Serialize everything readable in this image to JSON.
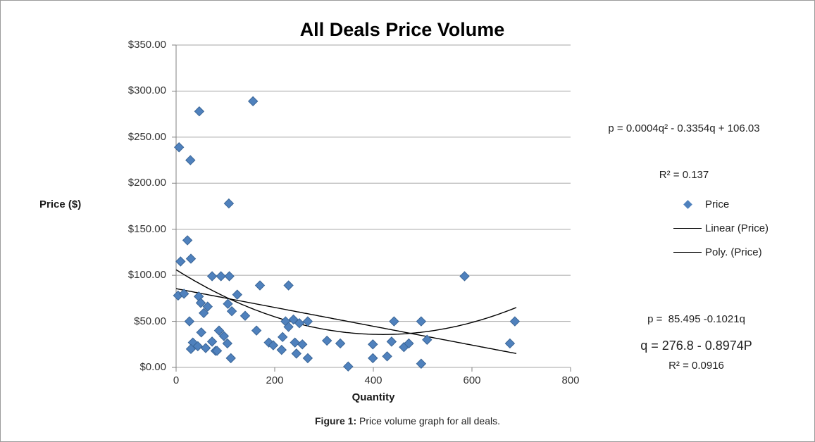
{
  "figure": {
    "caption_prefix": "Figure 1:",
    "caption_text": " Price volume graph for all deals."
  },
  "chart_data": {
    "type": "scatter",
    "title": "All Deals Price Volume",
    "xlabel": "Quantity",
    "ylabel": "Price ($)",
    "xlim": [
      0,
      800
    ],
    "ylim": [
      0,
      350
    ],
    "grid": "horizontal-only",
    "legend_position": "right-outside",
    "colors": {
      "point": "#4F81BD",
      "point_border": "#3A6596",
      "trend": "#000000",
      "grid": "#A6A6A6",
      "axis": "#808080"
    },
    "x_ticks": [
      {
        "value": 0,
        "label": "0"
      },
      {
        "value": 200,
        "label": "200"
      },
      {
        "value": 400,
        "label": "400"
      },
      {
        "value": 600,
        "label": "600"
      },
      {
        "value": 800,
        "label": "800"
      }
    ],
    "y_ticks": [
      {
        "value": 0,
        "label": "$0.00"
      },
      {
        "value": 50,
        "label": "$50.00"
      },
      {
        "value": 100,
        "label": "$100.00"
      },
      {
        "value": 150,
        "label": "$150.00"
      },
      {
        "value": 200,
        "label": "$200.00"
      },
      {
        "value": 250,
        "label": "$250.00"
      },
      {
        "value": 300,
        "label": "$300.00"
      },
      {
        "value": 350,
        "label": "$350.00"
      }
    ],
    "series": [
      {
        "name": "Price",
        "marker": "diamond",
        "color": "#4F81BD",
        "points": [
          [
            6,
            239
          ],
          [
            47,
            278
          ],
          [
            29,
            225
          ],
          [
            156,
            289
          ],
          [
            107,
            178
          ],
          [
            23,
            138
          ],
          [
            9,
            115
          ],
          [
            30,
            118
          ],
          [
            73,
            99
          ],
          [
            91,
            99
          ],
          [
            108,
            99
          ],
          [
            170,
            89
          ],
          [
            228,
            89
          ],
          [
            585,
            99
          ],
          [
            4,
            78
          ],
          [
            16,
            80
          ],
          [
            46,
            77
          ],
          [
            124,
            79
          ],
          [
            50,
            70
          ],
          [
            64,
            66
          ],
          [
            56,
            59
          ],
          [
            105,
            69
          ],
          [
            113,
            61
          ],
          [
            140,
            56
          ],
          [
            27,
            50
          ],
          [
            222,
            50
          ],
          [
            238,
            52
          ],
          [
            250,
            48
          ],
          [
            267,
            50
          ],
          [
            228,
            44
          ],
          [
            442,
            50
          ],
          [
            497,
            50
          ],
          [
            687,
            50
          ],
          [
            51,
            38
          ],
          [
            87,
            40
          ],
          [
            97,
            34
          ],
          [
            163,
            40
          ],
          [
            216,
            33
          ],
          [
            34,
            27
          ],
          [
            30,
            20
          ],
          [
            44,
            23
          ],
          [
            60,
            21
          ],
          [
            73,
            28
          ],
          [
            104,
            26
          ],
          [
            80,
            18
          ],
          [
            188,
            27
          ],
          [
            197,
            24
          ],
          [
            241,
            27
          ],
          [
            256,
            25
          ],
          [
            306,
            29
          ],
          [
            333,
            26
          ],
          [
            399,
            25
          ],
          [
            437,
            28
          ],
          [
            462,
            22
          ],
          [
            472,
            26
          ],
          [
            509,
            30
          ],
          [
            677,
            26
          ],
          [
            83,
            18
          ],
          [
            111,
            10
          ],
          [
            214,
            19
          ],
          [
            244,
            15
          ],
          [
            267,
            10
          ],
          [
            399,
            10
          ],
          [
            428,
            12
          ],
          [
            349,
            1
          ],
          [
            497,
            4
          ]
        ]
      }
    ],
    "trendlines": [
      {
        "label": "Linear (Price)",
        "type": "linear",
        "intercept": 85.495,
        "slope": -0.1021,
        "q_range": [
          0,
          690
        ],
        "equation_text": "p =  85.495 -0.1021q",
        "r2_text": "R² = 0.0916"
      },
      {
        "label": "Poly. (Price)",
        "type": "poly2",
        "a": 0.0004,
        "b": -0.3354,
        "c": 106.03,
        "q_range": [
          0,
          690
        ],
        "equation_text": "p = 0.0004q² - 0.3354q + 106.03",
        "r2_text": "R² = 0.137"
      }
    ],
    "legend": [
      {
        "label": "Price"
      },
      {
        "label": "Linear (Price)"
      },
      {
        "label": "Poly. (Price)"
      }
    ],
    "annotations": {
      "poly_eq": "p = 0.0004q² - 0.3354q + 106.03",
      "poly_r2": "R² = 0.137",
      "linear_eq": "p =  85.495 -0.1021q",
      "linear_r2": "R² = 0.0916",
      "demand_eq": "q = 276.8 - 0.8974P"
    }
  }
}
